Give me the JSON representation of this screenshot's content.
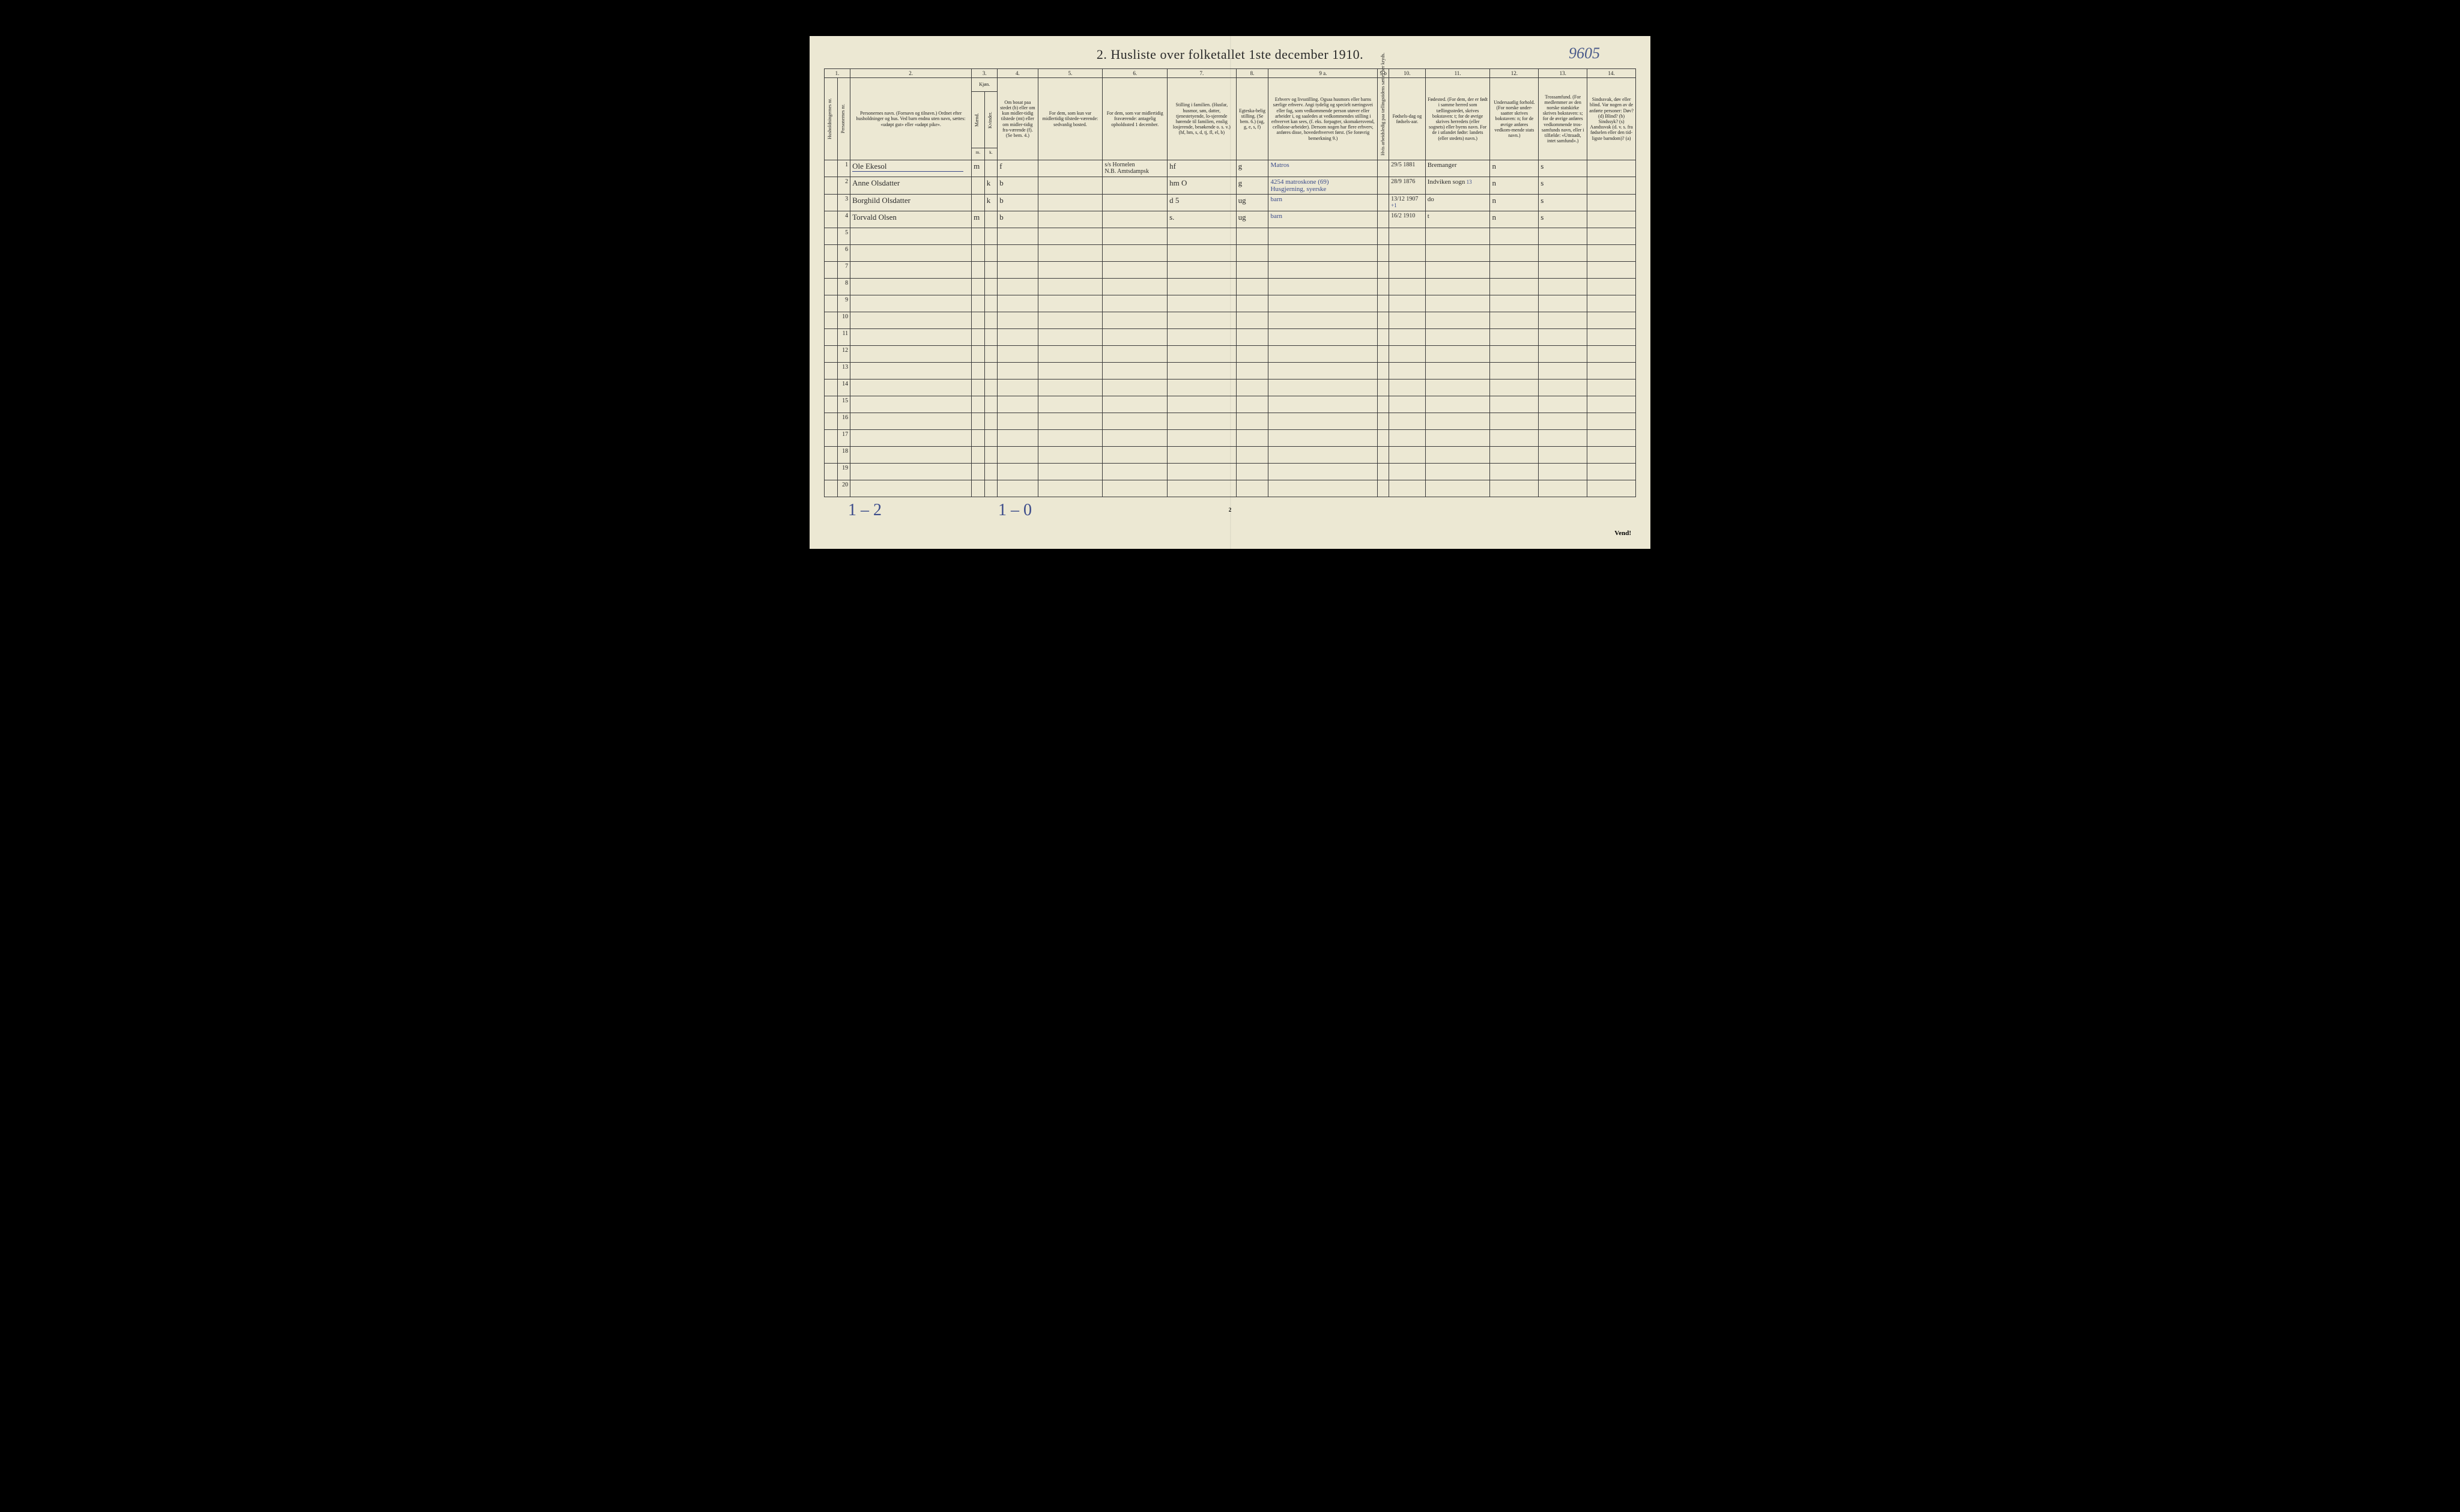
{
  "header": {
    "title": "2.  Husliste over folketallet 1ste december 1910.",
    "top_right_handwritten": "9605"
  },
  "footer": {
    "bottom_left_a": "1 – 2",
    "bottom_left_b": "1 – 0",
    "page_number_bottom": "2",
    "vend": "Vend!"
  },
  "colors": {
    "paper": "#ece8d3",
    "ink": "#2a2a2a",
    "rule": "#3a3a3a",
    "handwriting_blue": "#3a4a8a",
    "handwriting_dark": "#2b2b2b"
  },
  "column_numbers": [
    "1.",
    "2.",
    "3.",
    "4.",
    "5.",
    "6.",
    "7.",
    "8.",
    "9 a.",
    "9 b",
    "10.",
    "11.",
    "12.",
    "13.",
    "14."
  ],
  "headers": {
    "c1a": "Husholdningernes nr.",
    "c1b": "Personernes nr.",
    "c2": "Personernes navn.\n(Fornavn og tilnavn.)\nOrdnet efter husholdninger og hus.\nVed barn endnu uten navn, sættes: «udøpt gut» eller «udøpt pike».",
    "c3_top": "Kjøn.",
    "c3a": "Mænd.",
    "c3b": "Kvinder.",
    "c3_sub_m": "m.",
    "c3_sub_k": "k.",
    "c4": "Om bosat paa stedet (b) eller om kun midler-tidig tilstede (mt) eller om midler-tidig fra-værende (f).\n(Se bem. 4.)",
    "c5": "For dem, som kun var midlertidig tilstede-værende:\nsedvanlig bosted.",
    "c6": "For dem, som var midlertidig fraværende:\nantagelig opholdssted 1 december.",
    "c7": "Stilling i familien.\n(Husfar, husmor, søn, datter, tjenestetyende, lo-sjerende hørende til familien, enslig losjerende, besøkende o. s. v.)\n(hf, hm, s, d, tj, fl, el, b)",
    "c8": "Egteska-belig stilling.\n(Se bem. 6.)\n(ug, g, e, s, f)",
    "c9a": "Erhverv og livsstilling.\nOgsaa husmors eller barns særlige erhverv.\nAngi tydelig og specielt næringsvei eller fag, som vedkommende person utøver eller arbeider i, og saaledes at vedkommendes stilling i erhvervet kan sees, (f. eks. forpagter, skomakersvend, cellulose-arbeider). Dersom nogen har flere erhverv, anføres disse, hovederhvervet først.\n(Se forøvrig bemerkning 9.)",
    "c9b": "Hvis arbeidsledig paa tællingstidens sættes her kryds.",
    "c10": "Fødsels-dag og fødsels-aar.",
    "c11": "Fødested.\n(For dem, der er født i samme herred som tællingsstedet, skrives bokstaven: t; for de øvrige skrives herredets (eller sognets) eller byens navn. For de i utlandet fødte: landets (eller stedets) navn.)",
    "c12": "Undersaatlig forhold.\n(For norske under-saatter skrives bokstaven: n; for de øvrige anføres vedkom-mende stats navn.)",
    "c13": "Trossamfund.\n(For medlemmer av den norske statskirke skrives bokstaven: s; for de øvrige anføres vedkommende tros-samfunds navn, eller i tilfælde: «Uttraadt, intet samfund».)",
    "c14": "Sindssvak, døv eller blind.\nVar nogen av de anførte personer:\nDøv? (d)\nBlind? (b)\nSindssyk? (s)\nAandssvak (d. v. s. fra fødselen eller den tid-ligste barndom)? (a)"
  },
  "rows": [
    {
      "num": "1",
      "name": "Ole Ekesol",
      "sex_m": "m",
      "sex_k": "",
      "res": "f",
      "temp_place": "",
      "absent_place": "s/s Hornelen\nN.B. Amtsdampsk",
      "fam": "hf",
      "marital": "g",
      "occupation": "Matros",
      "strike": "",
      "birth": "29/5 1881",
      "birthplace": "Bremanger",
      "nationality": "n",
      "faith": "s",
      "disability": "",
      "name_underline": true
    },
    {
      "num": "2",
      "name": "Anne Olsdatter",
      "sex_m": "",
      "sex_k": "k",
      "res": "b",
      "temp_place": "",
      "absent_place": "",
      "fam": "hm O",
      "marital": "g",
      "occupation": "4254 matroskone (69)\nHusgjerning, syerske",
      "strike": "",
      "birth": "28/9 1876",
      "birthplace": "Indviken sogn",
      "nationality": "n",
      "faith": "s",
      "disability": "",
      "extra_note": "13"
    },
    {
      "num": "3",
      "name": "Borghild Olsdatter",
      "sex_m": "",
      "sex_k": "k",
      "res": "b",
      "temp_place": "",
      "absent_place": "",
      "fam": "d  5",
      "marital": "ug",
      "occupation": "barn",
      "strike": "",
      "birth": "13/12 1907",
      "birthplace": "do",
      "nationality": "n",
      "faith": "s",
      "disability": "",
      "extra_birth": "+1"
    },
    {
      "num": "4",
      "name": "Torvald Olsen",
      "sex_m": "m",
      "sex_k": "",
      "res": "b",
      "temp_place": "",
      "absent_place": "",
      "fam": "s.",
      "marital": "ug",
      "occupation": "barn",
      "strike": "",
      "birth": "16/2 1910",
      "birthplace": "t",
      "nationality": "n",
      "faith": "s",
      "disability": ""
    }
  ],
  "empty_rows": [
    "5",
    "6",
    "7",
    "8",
    "9",
    "10",
    "11",
    "12",
    "13",
    "14",
    "15",
    "16",
    "17",
    "18",
    "19",
    "20"
  ]
}
